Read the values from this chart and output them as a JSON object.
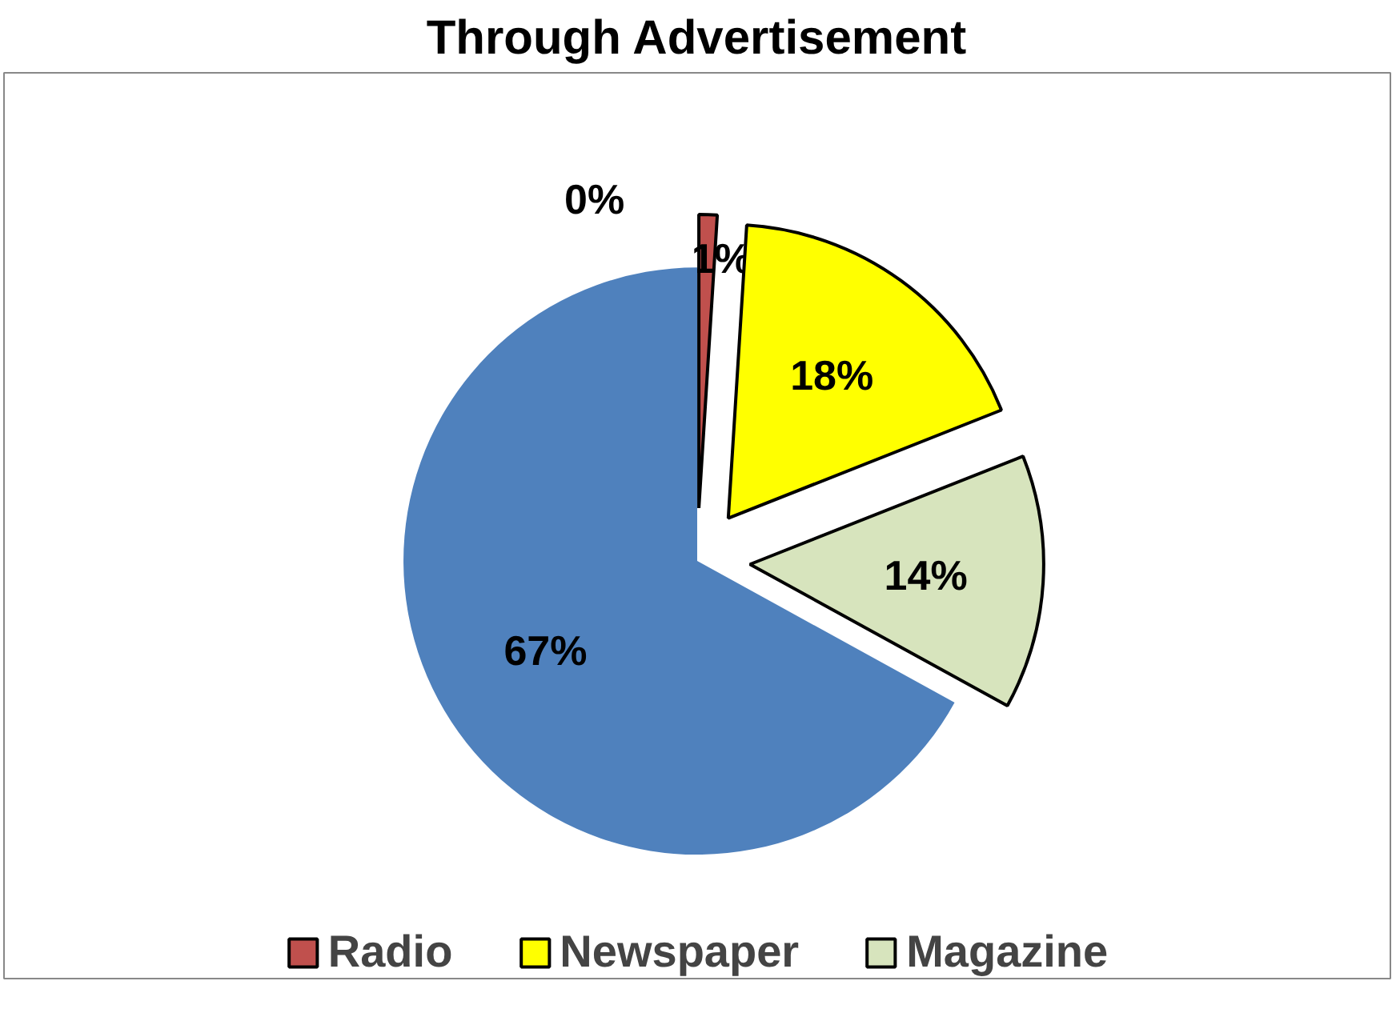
{
  "chart_data": {
    "type": "pie",
    "title": "Through Advertisement",
    "categories": [
      "Radio",
      "Newspaper",
      "Magazine",
      null,
      null
    ],
    "values": [
      1,
      18,
      14,
      67,
      0
    ],
    "colors": [
      "#c0504d",
      "#ffff00",
      "#d7e4bd",
      "#4f81bd",
      "#8064a2"
    ],
    "value_labels": [
      "1%",
      "18%",
      "14%",
      "67%",
      "0%"
    ],
    "legend": "bottom"
  }
}
